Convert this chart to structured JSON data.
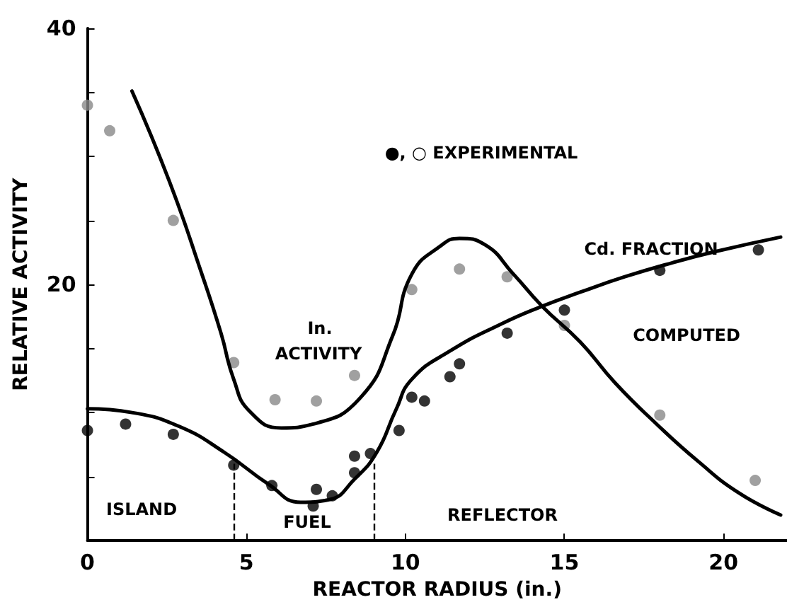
{
  "chart_data": {
    "type": "scatter",
    "xlabel": "REACTOR RADIUS (in.)",
    "ylabel": "RELATIVE ACTIVITY",
    "xlim": [
      0,
      22
    ],
    "xticks": [
      0,
      5,
      10,
      15,
      20
    ],
    "ylim": [
      0,
      40
    ],
    "yticks": [
      {
        "value": 0,
        "label": null
      },
      {
        "value": 5,
        "label": null
      },
      {
        "value": 10,
        "label": null
      },
      {
        "value": 15,
        "label": null
      },
      20,
      {
        "value": 25,
        "label": null
      },
      {
        "value": 30,
        "label": null
      },
      {
        "value": 35,
        "label": null
      },
      40
    ],
    "grid": false,
    "marker": "circle",
    "series": [
      {
        "type": "scatter",
        "color": "#888888",
        "x": [
          0,
          0.7,
          2.7,
          4.6,
          5.9,
          7.2,
          8.4,
          10.2,
          11.7,
          13.2,
          15.0,
          18.0,
          21.0
        ],
        "values": [
          34.0,
          32.0,
          25.0,
          13.9,
          11.0,
          10.9,
          12.9,
          19.6,
          21.2,
          20.6,
          16.8,
          9.8,
          4.7
        ]
      },
      {
        "type": "scatter",
        "color": "#000000",
        "x": [
          0,
          1.2,
          2.7,
          4.6,
          5.8,
          7.2,
          7.1,
          7.7,
          8.4,
          8.4,
          8.9,
          9.8,
          10.2,
          10.6,
          11.4,
          11.7,
          13.2,
          15.0,
          18.0,
          21.1
        ],
        "values": [
          8.6,
          9.1,
          8.3,
          5.9,
          4.3,
          4.0,
          2.7,
          3.5,
          5.3,
          6.6,
          6.8,
          8.6,
          11.2,
          10.9,
          12.8,
          13.8,
          16.2,
          18.0,
          21.1,
          22.7
        ]
      },
      {
        "type": "line",
        "marker": "none",
        "color": "#000000",
        "x": [
          1.4,
          2.6,
          3.6,
          4.2,
          4.6,
          5.1,
          6.1,
          7.1,
          8.6,
          9.6,
          10.2,
          11.1,
          11.7,
          12.5,
          13.4,
          14.3,
          15.5,
          16.6,
          17.9,
          19.2,
          20.5,
          21.8
        ],
        "values": [
          35.1,
          27.9,
          20.8,
          16.2,
          12.6,
          10.1,
          8.8,
          9.1,
          11.2,
          16.0,
          20.8,
          23.0,
          23.6,
          23.1,
          20.8,
          18.3,
          15.5,
          12.3,
          9.1,
          6.2,
          3.7,
          2.0
        ]
      },
      {
        "type": "line",
        "marker": "none",
        "color": "#000000",
        "x": [
          0,
          1.4,
          2.9,
          4.3,
          5.7,
          6.7,
          7.6,
          8.4,
          9.1,
          9.7,
          10.2,
          11.4,
          13.0,
          14.3,
          15.5,
          16.9,
          18.4,
          19.8,
          21.8
        ],
        "values": [
          10.3,
          10.0,
          8.9,
          6.9,
          4.4,
          3.0,
          3.2,
          4.8,
          6.9,
          10.2,
          12.6,
          14.8,
          16.9,
          18.3,
          19.4,
          20.6,
          21.7,
          22.6,
          23.7
        ]
      }
    ],
    "ref_lines": [
      {
        "axis": "x",
        "value": 4.6,
        "line_style": "dashed"
      },
      {
        "axis": "x",
        "value": 9.0,
        "line_style": "dashed"
      }
    ],
    "annotations": [
      "ISLAND",
      "FUEL",
      "REFLECTOR",
      "In.",
      "ACTIVITY",
      "●, ○ EXPERIMENTAL",
      "Cd. FRACTION",
      "COMPUTED"
    ]
  }
}
